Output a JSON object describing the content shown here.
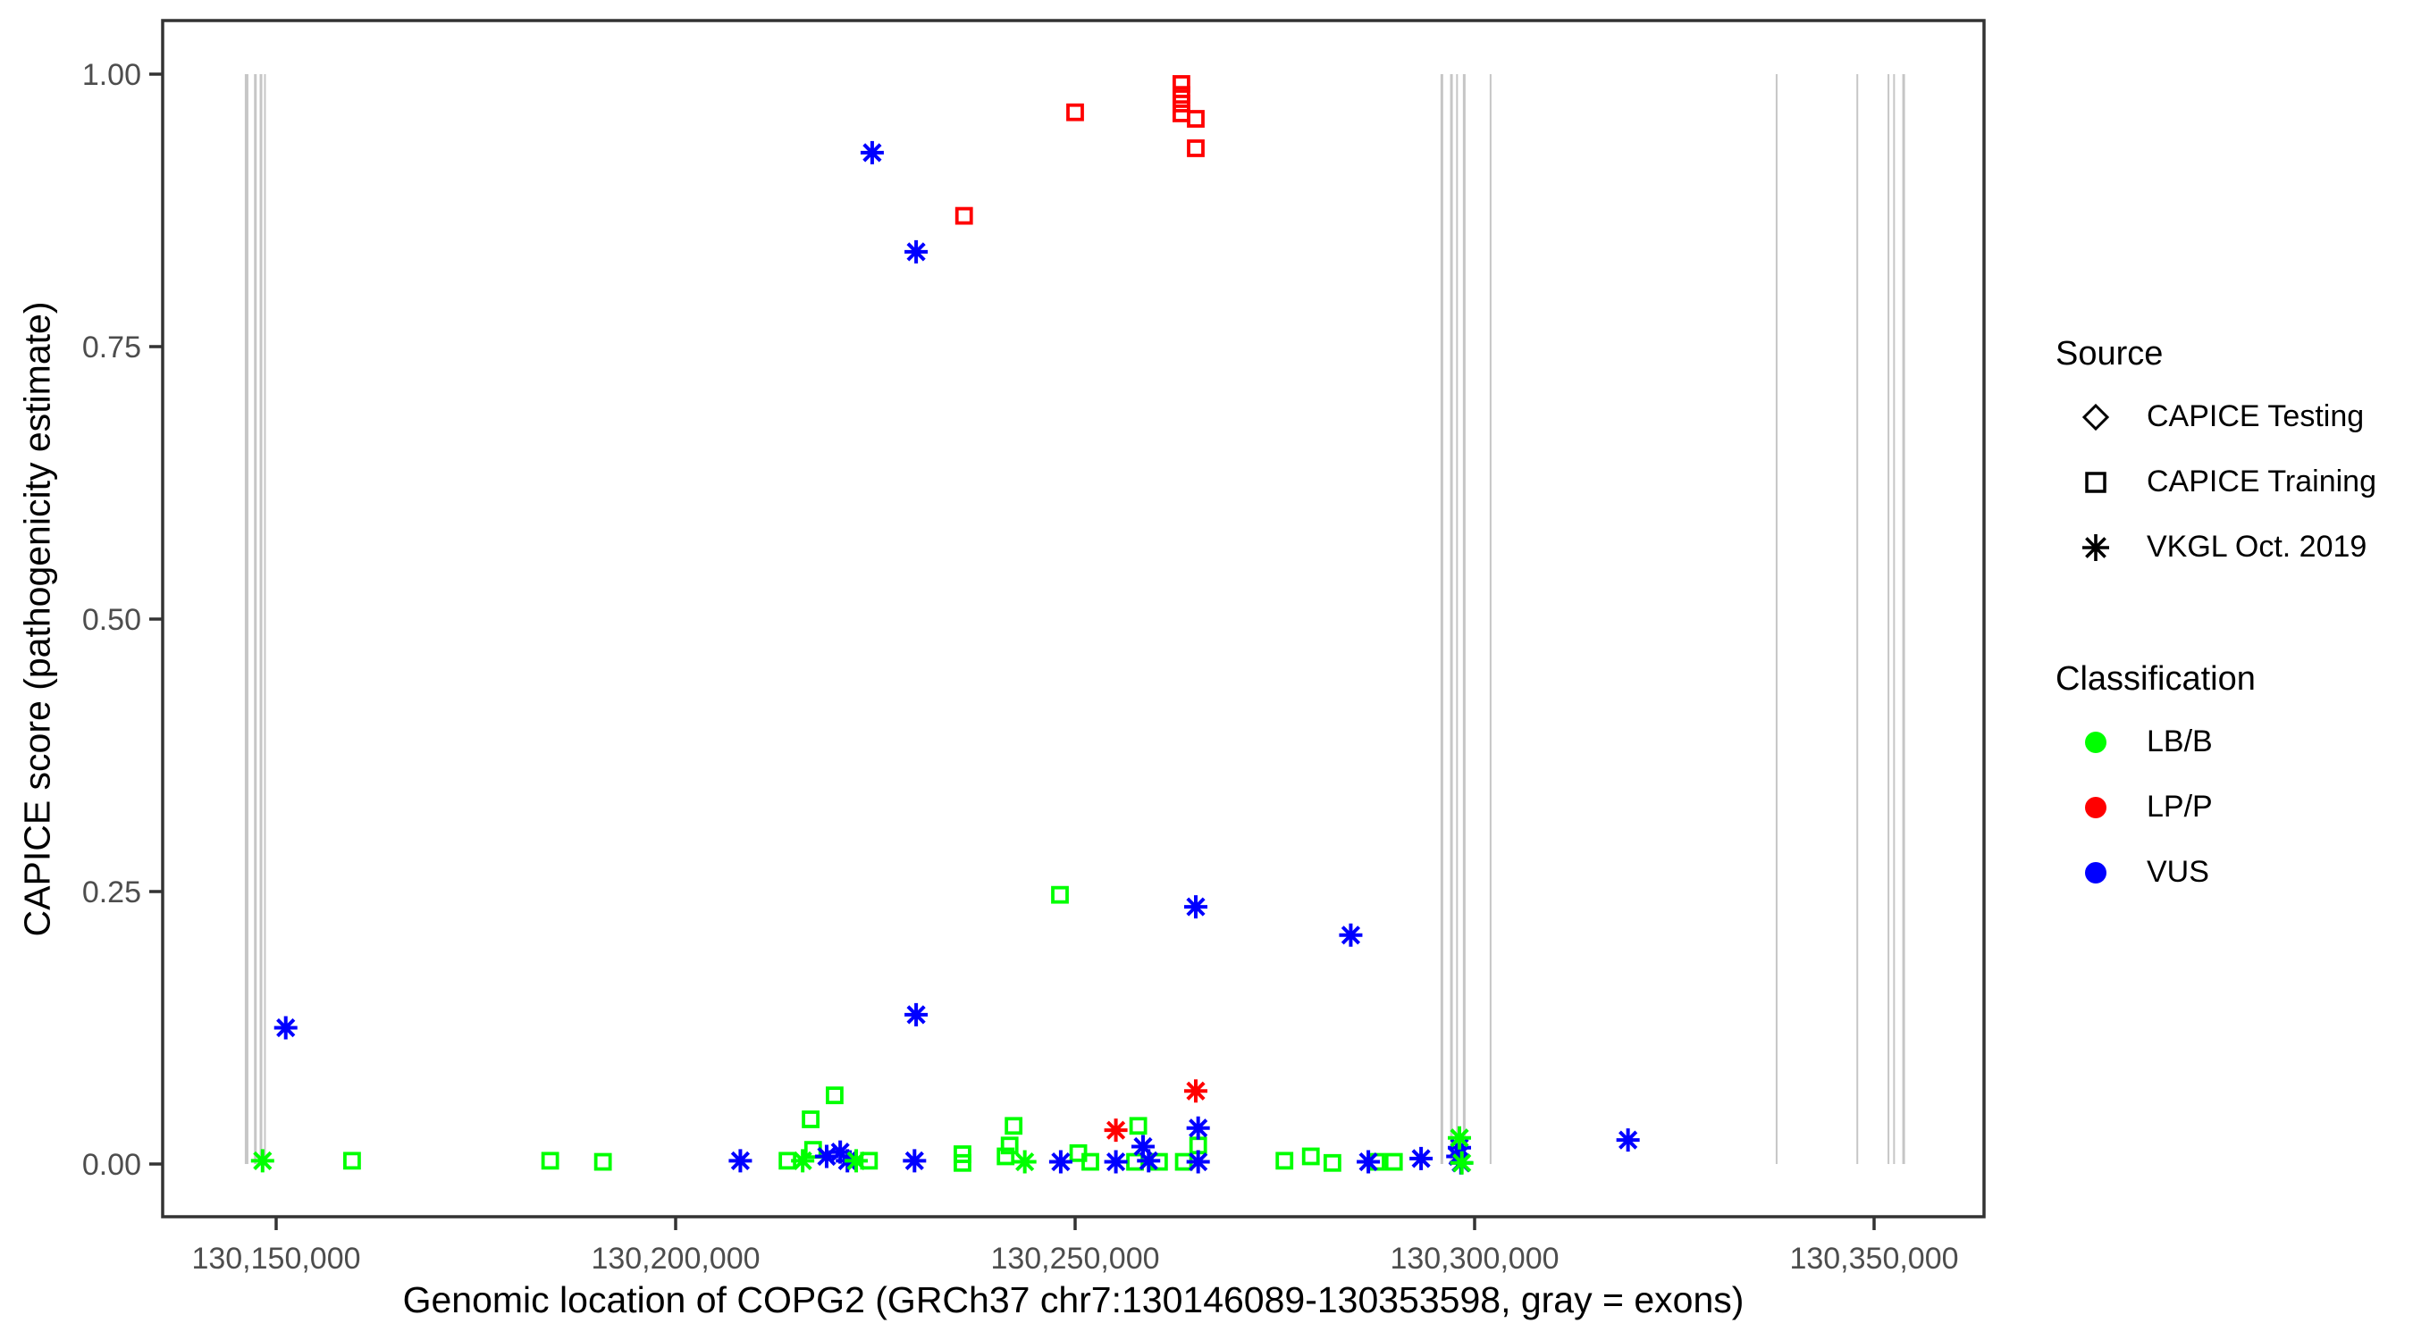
{
  "figure": {
    "background": "#ffffff"
  },
  "colors": {
    "LB/B": "#00ff00",
    "LP/P": "#ff0000",
    "VUS": "#0000ff",
    "exon_gray": "#c6c6c6",
    "axis_text": "#4d4d4d",
    "axis_line": "#333333"
  },
  "legend": {
    "source": {
      "title": "Source",
      "items": [
        {
          "marker": "diamond",
          "label": "CAPICE Testing"
        },
        {
          "marker": "square",
          "label": "CAPICE Training"
        },
        {
          "marker": "asterisk",
          "label": "VKGL Oct. 2019"
        }
      ]
    },
    "classification": {
      "title": "Classification",
      "items": [
        {
          "swatch": "dot",
          "class": "LB/B",
          "label": "LB/B"
        },
        {
          "swatch": "dot",
          "class": "LP/P",
          "label": "LP/P"
        },
        {
          "swatch": "dot",
          "class": "VUS",
          "label": "VUS"
        }
      ]
    }
  },
  "chart_data": {
    "type": "scatter",
    "title": "",
    "xlabel": "Genomic location of COPG2 (GRCh37 chr7:130146089-130353598, gray = exons)",
    "ylabel": "CAPICE score (pathogenicity estimate)",
    "xlim": [
      130135800,
      130363750
    ],
    "ylim": [
      -0.048,
      1.049
    ],
    "grid": false,
    "legend_position": "right",
    "x_ticks": [
      {
        "value": 130150000,
        "label": "130,150,000"
      },
      {
        "value": 130200000,
        "label": "130,200,000"
      },
      {
        "value": 130250000,
        "label": "130,250,000"
      },
      {
        "value": 130300000,
        "label": "130,300,000"
      },
      {
        "value": 130350000,
        "label": "130,350,000"
      }
    ],
    "y_ticks": [
      {
        "value": 0.0,
        "label": "0.00"
      },
      {
        "value": 0.25,
        "label": "0.25"
      },
      {
        "value": 0.5,
        "label": "0.50"
      },
      {
        "value": 0.75,
        "label": "0.75"
      },
      {
        "value": 1.0,
        "label": "1.00"
      }
    ],
    "exon_note": "gray vertical lines = exons, drawn from score 0.00 to 1.00",
    "exons_bp": [
      {
        "bp": 130146300,
        "w": 4
      },
      {
        "bp": 130147400,
        "w": 3
      },
      {
        "bp": 130148100,
        "w": 3
      },
      {
        "bp": 130148600,
        "w": 2
      },
      {
        "bp": 130295900,
        "w": 3
      },
      {
        "bp": 130297100,
        "w": 3
      },
      {
        "bp": 130297800,
        "w": 2
      },
      {
        "bp": 130298700,
        "w": 3
      },
      {
        "bp": 130302000,
        "w": 2
      },
      {
        "bp": 130337800,
        "w": 2
      },
      {
        "bp": 130347900,
        "w": 2
      },
      {
        "bp": 130351800,
        "w": 2
      },
      {
        "bp": 130352500,
        "w": 2
      },
      {
        "bp": 130353700,
        "w": 3
      }
    ],
    "series": [
      {
        "name": "CAPICE Testing",
        "marker": "diamond",
        "points": []
      },
      {
        "name": "CAPICE Training",
        "marker": "square",
        "points": [
          {
            "bp": 130236100,
            "score": 0.87,
            "class": "LP/P"
          },
          {
            "bp": 130250000,
            "score": 0.965,
            "class": "LP/P"
          },
          {
            "bp": 130263300,
            "score": 0.991,
            "class": "LP/P"
          },
          {
            "bp": 130263300,
            "score": 0.981,
            "class": "LP/P"
          },
          {
            "bp": 130263300,
            "score": 0.973,
            "class": "LP/P"
          },
          {
            "bp": 130263300,
            "score": 0.964,
            "class": "LP/P"
          },
          {
            "bp": 130265100,
            "score": 0.959,
            "class": "LP/P"
          },
          {
            "bp": 130265100,
            "score": 0.932,
            "class": "LP/P"
          },
          {
            "bp": 130159500,
            "score": 0.003,
            "class": "LB/B"
          },
          {
            "bp": 130184300,
            "score": 0.003,
            "class": "LB/B"
          },
          {
            "bp": 130190900,
            "score": 0.002,
            "class": "LB/B"
          },
          {
            "bp": 130214000,
            "score": 0.003,
            "class": "LB/B"
          },
          {
            "bp": 130216900,
            "score": 0.041,
            "class": "LB/B"
          },
          {
            "bp": 130217200,
            "score": 0.013,
            "class": "LB/B"
          },
          {
            "bp": 130219900,
            "score": 0.063,
            "class": "LB/B"
          },
          {
            "bp": 130224200,
            "score": 0.003,
            "class": "LB/B"
          },
          {
            "bp": 130235900,
            "score": 0.009,
            "class": "LB/B"
          },
          {
            "bp": 130235900,
            "score": 0.001,
            "class": "LB/B"
          },
          {
            "bp": 130241300,
            "score": 0.007,
            "class": "LB/B"
          },
          {
            "bp": 130241800,
            "score": 0.017,
            "class": "LB/B"
          },
          {
            "bp": 130242300,
            "score": 0.035,
            "class": "LB/B"
          },
          {
            "bp": 130248100,
            "score": 0.247,
            "class": "LB/B"
          },
          {
            "bp": 130250400,
            "score": 0.01,
            "class": "LB/B"
          },
          {
            "bp": 130251900,
            "score": 0.002,
            "class": "LB/B"
          },
          {
            "bp": 130257500,
            "score": 0.002,
            "class": "LB/B"
          },
          {
            "bp": 130257900,
            "score": 0.035,
            "class": "LB/B"
          },
          {
            "bp": 130260500,
            "score": 0.002,
            "class": "LB/B"
          },
          {
            "bp": 130263600,
            "score": 0.002,
            "class": "LB/B"
          },
          {
            "bp": 130265400,
            "score": 0.017,
            "class": "LB/B"
          },
          {
            "bp": 130276200,
            "score": 0.003,
            "class": "LB/B"
          },
          {
            "bp": 130279500,
            "score": 0.007,
            "class": "LB/B"
          },
          {
            "bp": 130282200,
            "score": 0.001,
            "class": "LB/B"
          },
          {
            "bp": 130287700,
            "score": 0.002,
            "class": "LB/B"
          },
          {
            "bp": 130289900,
            "score": 0.002,
            "class": "LB/B"
          }
        ]
      },
      {
        "name": "VKGL Oct. 2019",
        "marker": "asterisk",
        "points": [
          {
            "bp": 130151200,
            "score": 0.125,
            "class": "VUS"
          },
          {
            "bp": 130208100,
            "score": 0.003,
            "class": "VUS"
          },
          {
            "bp": 130218900,
            "score": 0.007,
            "class": "VUS"
          },
          {
            "bp": 130220600,
            "score": 0.011,
            "class": "VUS"
          },
          {
            "bp": 130221500,
            "score": 0.003,
            "class": "VUS"
          },
          {
            "bp": 130224600,
            "score": 0.928,
            "class": "VUS"
          },
          {
            "bp": 130229900,
            "score": 0.003,
            "class": "VUS"
          },
          {
            "bp": 130230100,
            "score": 0.837,
            "class": "VUS"
          },
          {
            "bp": 130230100,
            "score": 0.137,
            "class": "VUS"
          },
          {
            "bp": 130248200,
            "score": 0.002,
            "class": "VUS"
          },
          {
            "bp": 130255100,
            "score": 0.002,
            "class": "VUS"
          },
          {
            "bp": 130258500,
            "score": 0.016,
            "class": "VUS"
          },
          {
            "bp": 130259200,
            "score": 0.003,
            "class": "VUS"
          },
          {
            "bp": 130265100,
            "score": 0.236,
            "class": "VUS"
          },
          {
            "bp": 130265400,
            "score": 0.033,
            "class": "VUS"
          },
          {
            "bp": 130265400,
            "score": 0.002,
            "class": "VUS"
          },
          {
            "bp": 130284500,
            "score": 0.21,
            "class": "VUS"
          },
          {
            "bp": 130286700,
            "score": 0.002,
            "class": "VUS"
          },
          {
            "bp": 130293300,
            "score": 0.005,
            "class": "VUS"
          },
          {
            "bp": 130297900,
            "score": 0.007,
            "class": "VUS"
          },
          {
            "bp": 130298100,
            "score": 0.015,
            "class": "VUS"
          },
          {
            "bp": 130298300,
            "score": 0.001,
            "class": "VUS"
          },
          {
            "bp": 130319200,
            "score": 0.022,
            "class": "VUS"
          },
          {
            "bp": 130255100,
            "score": 0.031,
            "class": "LP/P"
          },
          {
            "bp": 130265100,
            "score": 0.067,
            "class": "LP/P"
          },
          {
            "bp": 130148300,
            "score": 0.003,
            "class": "LB/B"
          },
          {
            "bp": 130215900,
            "score": 0.003,
            "class": "LB/B"
          },
          {
            "bp": 130222600,
            "score": 0.003,
            "class": "LB/B"
          },
          {
            "bp": 130243700,
            "score": 0.002,
            "class": "LB/B"
          },
          {
            "bp": 130298100,
            "score": 0.024,
            "class": "LB/B"
          },
          {
            "bp": 130298400,
            "score": 0.001,
            "class": "LB/B"
          }
        ]
      }
    ]
  }
}
